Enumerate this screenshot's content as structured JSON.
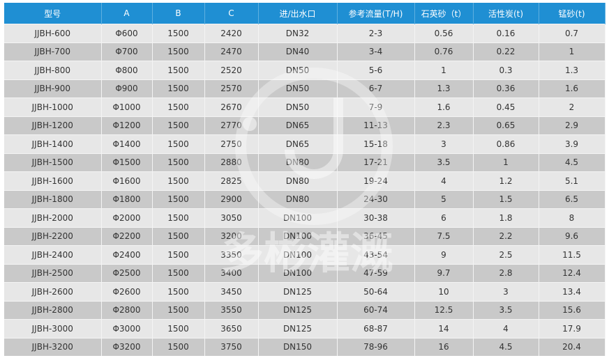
{
  "table": {
    "headers": [
      "型号",
      "A",
      "B",
      "C",
      "进/出水口",
      "参考流量(T/H)",
      "石英砂（t）",
      "活性炭(t)",
      "锰砂(t)"
    ],
    "rows": [
      [
        "JJBH-600",
        "Φ600",
        "1500",
        "2420",
        "DN32",
        "2-3",
        "0.56",
        "0.16",
        "0.7"
      ],
      [
        "JJBH-700",
        "Φ700",
        "1500",
        "2470",
        "DN40",
        "3-4",
        "0.76",
        "0.22",
        "1"
      ],
      [
        "JJBH-800",
        "Φ800",
        "1500",
        "2520",
        "DN50",
        "5-6",
        "1",
        "0.3",
        "1.3"
      ],
      [
        "JJBH-900",
        "Φ900",
        "1500",
        "2570",
        "DN50",
        "6-7",
        "1.3",
        "0.36",
        "1.6"
      ],
      [
        "JJBH-1000",
        "Φ1000",
        "1500",
        "2670",
        "DN50",
        "7-9",
        "1.6",
        "0.45",
        "2"
      ],
      [
        "JJBH-1200",
        "Φ1200",
        "1500",
        "2770",
        "DN65",
        "11-13",
        "2.3",
        "0.65",
        "2.9"
      ],
      [
        "JJBH-1400",
        "Φ1400",
        "1500",
        "2750",
        "DN65",
        "15-18",
        "3",
        "0.86",
        "3.9"
      ],
      [
        "JJBH-1500",
        "Φ1500",
        "1500",
        "2880",
        "DN80",
        "17-21",
        "3.5",
        "1",
        "4.5"
      ],
      [
        "JJBH-1600",
        "Φ1600",
        "1500",
        "2825",
        "DN80",
        "19-24",
        "4",
        "1.2",
        "5.1"
      ],
      [
        "JJBH-1800",
        "Φ1800",
        "1500",
        "2900",
        "DN80",
        "24-30",
        "5",
        "1.5",
        "6.5"
      ],
      [
        "JJBH-2000",
        "Φ2000",
        "1500",
        "3050",
        "DN100",
        "30-38",
        "6",
        "1.8",
        "8"
      ],
      [
        "JJBH-2200",
        "Φ2200",
        "1500",
        "3200",
        "DN100",
        "36-45",
        "7.5",
        "2.2",
        "9.6"
      ],
      [
        "JJBH-2400",
        "Φ2400",
        "1500",
        "3350",
        "DN100",
        "43-54",
        "9",
        "2.5",
        "11.5"
      ],
      [
        "JJBH-2500",
        "Φ2500",
        "1500",
        "3400",
        "DN100",
        "47-59",
        "9.7",
        "2.8",
        "12.4"
      ],
      [
        "JJBH-2600",
        "Φ2600",
        "1500",
        "3450",
        "DN125",
        "50-64",
        "10",
        "3",
        "13.4"
      ],
      [
        "JJBH-2800",
        "Φ2800",
        "1500",
        "3550",
        "DN125",
        "60-74",
        "12.5",
        "3.5",
        "15.6"
      ],
      [
        "JJBH-3000",
        "Φ3000",
        "1500",
        "3650",
        "DN125",
        "68-87",
        "14",
        "4",
        "17.9"
      ],
      [
        "JJBH-3200",
        "Φ3200",
        "1500",
        "3750",
        "DN150",
        "78-96",
        "16",
        "4.5",
        "20.4"
      ]
    ]
  },
  "watermark": {
    "text": "多彬灌溉"
  },
  "colors": {
    "header": "#1f8fd3",
    "row_light": "#e7e7e7",
    "row_dark": "#c9c9c9"
  }
}
